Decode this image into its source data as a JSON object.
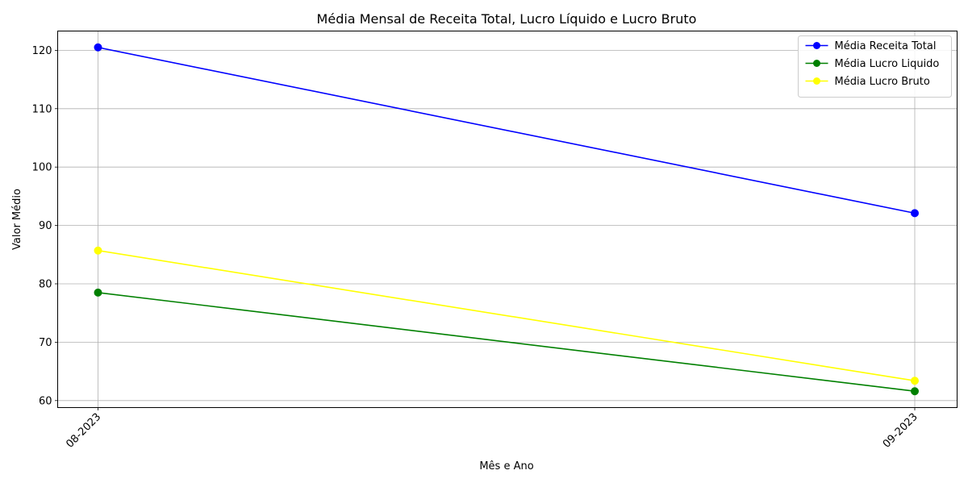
{
  "chart_data": {
    "type": "line",
    "title": "Média Mensal de Receita Total, Lucro Líquido e Lucro Bruto",
    "xlabel": "Mês e Ano",
    "ylabel": "Valor Médio",
    "categories": [
      "08-2023",
      "09-2023"
    ],
    "ylim": [
      58.8,
      123.3
    ],
    "yticks": [
      60,
      70,
      80,
      90,
      100,
      110,
      120
    ],
    "grid": true,
    "legend_position": "top-right",
    "series": [
      {
        "name": "Média Receita Total",
        "values": [
          120.5,
          92.1
        ],
        "color": "#0000ff"
      },
      {
        "name": "Média Lucro Liquido",
        "values": [
          78.5,
          61.6
        ],
        "color": "#008000"
      },
      {
        "name": "Média Lucro Bruto",
        "values": [
          85.7,
          63.4
        ],
        "color": "#ffff00"
      }
    ]
  }
}
